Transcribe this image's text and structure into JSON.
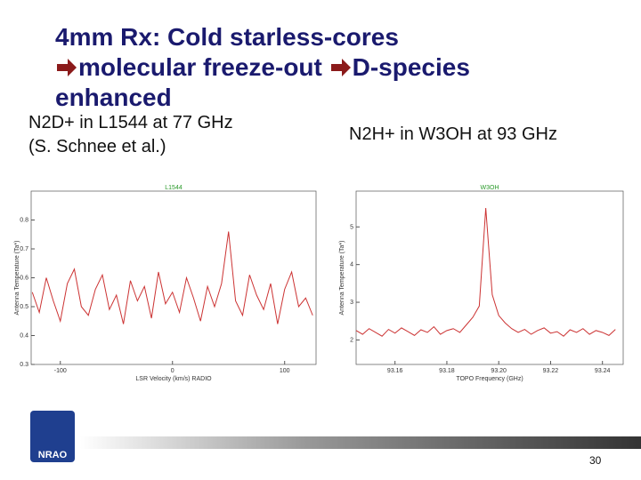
{
  "slide": {
    "title_lines": [
      "4mm Rx: Cold starless-cores",
      "molecular freeze-out",
      "D-species",
      "enhanced"
    ],
    "left_caption": [
      "N2D+ in L1544 at 77 GHz",
      "(S. Schnee et al.)"
    ],
    "right_caption": "N2H+ in W3OH at 93 GHz",
    "logo": "NRAO",
    "page_number": "30"
  },
  "chart_data": [
    {
      "type": "line",
      "label": "L1544",
      "x_label": "LSR Velocity (km/s) RADIO",
      "y_label": "Antenna Temperature (Ta*)",
      "xlim": [
        -126,
        128
      ],
      "xticks": [
        -100,
        0,
        100
      ],
      "ylim": [
        0.3,
        0.9
      ],
      "yticks": [
        0.3,
        0.4,
        0.5,
        0.6,
        0.7,
        0.8
      ],
      "series": [
        {
          "color": "#cc3333",
          "x": [
            -125,
            -118.75,
            -112.5,
            -106.25,
            -100,
            -93.75,
            -87.5,
            -81.25,
            -75,
            -68.75,
            -62.5,
            -56.25,
            -50,
            -43.75,
            -37.5,
            -31.25,
            -25,
            -18.75,
            -12.5,
            -6.25,
            0,
            6.25,
            12.5,
            18.75,
            25,
            31.25,
            37.5,
            43.75,
            50,
            56.25,
            62.5,
            68.75,
            75,
            81.25,
            87.5,
            93.75,
            100,
            106.25,
            112.5,
            118.75,
            125
          ],
          "values": [
            0.55,
            0.48,
            0.6,
            0.52,
            0.45,
            0.58,
            0.63,
            0.5,
            0.47,
            0.56,
            0.61,
            0.49,
            0.54,
            0.44,
            0.59,
            0.52,
            0.57,
            0.46,
            0.62,
            0.51,
            0.55,
            0.48,
            0.6,
            0.53,
            0.45,
            0.57,
            0.5,
            0.58,
            0.76,
            0.52,
            0.47,
            0.61,
            0.54,
            0.49,
            0.58,
            0.44,
            0.56,
            0.62,
            0.5,
            0.53,
            0.47
          ]
        }
      ]
    },
    {
      "type": "line",
      "label": "W3OH",
      "x_label": "TOPO Frequency (GHz)",
      "y_label": "Antenna Temperature (Ta*)",
      "xlim": [
        93.145,
        93.248
      ],
      "xticks": [
        93.16,
        93.18,
        {
          "value": 93.2,
          "label": "93.20"
        },
        93.22,
        93.24
      ],
      "ylim": [
        1.35,
        5.95
      ],
      "yticks": [
        2,
        3,
        4,
        5
      ],
      "series": [
        {
          "color": "#cc3333",
          "x": [
            93.145,
            93.1475,
            93.15,
            93.1525,
            93.155,
            93.1575,
            93.16,
            93.1625,
            93.165,
            93.1675,
            93.17,
            93.1725,
            93.175,
            93.1775,
            93.18,
            93.1825,
            93.185,
            93.1875,
            93.19,
            93.1925,
            93.195,
            93.1975,
            93.2,
            93.2025,
            93.205,
            93.2075,
            93.21,
            93.2125,
            93.215,
            93.2175,
            93.22,
            93.2225,
            93.225,
            93.2275,
            93.23,
            93.2325,
            93.235,
            93.2375,
            93.24,
            93.2425,
            93.245
          ],
          "values": [
            2.25,
            2.15,
            2.3,
            2.2,
            2.1,
            2.28,
            2.18,
            2.32,
            2.22,
            2.12,
            2.27,
            2.2,
            2.35,
            2.15,
            2.25,
            2.3,
            2.2,
            2.4,
            2.6,
            2.9,
            5.5,
            3.2,
            2.65,
            2.45,
            2.3,
            2.2,
            2.28,
            2.15,
            2.25,
            2.32,
            2.18,
            2.22,
            2.1,
            2.27,
            2.2,
            2.3,
            2.15,
            2.25,
            2.2,
            2.12,
            2.28
          ]
        }
      ]
    }
  ]
}
